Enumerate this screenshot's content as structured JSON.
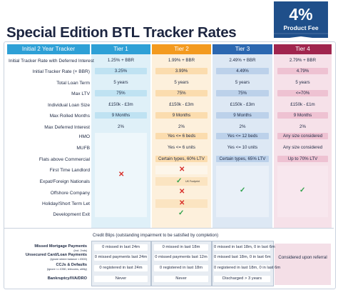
{
  "title": "Special Edition BTL Tracker Rates",
  "badge": {
    "percent": "4%",
    "text": "Product Fee"
  },
  "colors": {
    "navy": "#1f4f8a",
    "tier1": "#2ea0d6",
    "tier2": "#f39a1f",
    "tier3": "#2b67b0",
    "tier4": "#a0254e",
    "cross": "#d8302a",
    "tick": "#31a24c"
  },
  "headers": [
    "Initial 2 Year Tracker",
    "Tier 1",
    "Tier 2",
    "Tier 3",
    "Tier 4"
  ],
  "rows": [
    {
      "label": "Initial Tracker Rate with Deferred Interest",
      "t1": "1.25% + BBR",
      "t2": "1.99% + BBR",
      "t3": "2.49% + BBR",
      "t4": "2.79% + BBR"
    },
    {
      "label": "Initial Tracker Rate (+ BBR)",
      "t1": "3.25%",
      "t2": "3.99%",
      "t3": "4.49%",
      "t4": "4.79%"
    },
    {
      "label": "Total Loan Term",
      "t1": "5 years",
      "t2": "5 years",
      "t3": "5 years",
      "t4": "5 years"
    },
    {
      "label": "Max LTV",
      "t1": "75%",
      "t2": "75%",
      "t3": "75%",
      "t4": "<=70%"
    },
    {
      "label": "Individual Loan Size",
      "t1": "£150k - £3m",
      "t2": "£150k - £3m",
      "t3": "£150k - £3m",
      "t4": "£150k - £1m"
    },
    {
      "label": "Max Rolled Months",
      "t1": "9 Months",
      "t2": "9 Months",
      "t3": "9 Months",
      "t4": "9 Months"
    },
    {
      "label": "Max Deferred Interest",
      "t1": "2%",
      "t2": "2%",
      "t3": "2%",
      "t4": "2%"
    }
  ],
  "criteria": [
    {
      "label": "HMO",
      "t2": "Yes <= 6 beds",
      "t3": "Yes <= 12 beds",
      "t4": "Any size considered"
    },
    {
      "label": "MUFB",
      "t2": "Yes <= 6 units",
      "t3": "Yes <= 10 units",
      "t4": "Any size considered"
    },
    {
      "label": "Flats above Commercial",
      "t2": "Certain types, 60% LTV",
      "t3": "Certain types, 65% LTV",
      "t4": "Up to 70% LTV"
    },
    {
      "label": "First Time Landlord"
    },
    {
      "label": "Expat/Foreign Nationals",
      "t2_note": "UK Footprint"
    },
    {
      "label": "Offshore Company"
    },
    {
      "label": "Holiday/Short Term Let"
    },
    {
      "label": "Development Exit"
    }
  ],
  "credit": {
    "title": "Credit Blips (outstanding impairment to be satisfied by completion)",
    "rows": [
      {
        "label": "Missed Mortgage Payments",
        "note": "(incl. 2nds)",
        "t1": "0 missed in last 24m",
        "t2": "0 missed in last 18m",
        "t3": "0 missed in last 18m, 0 in last 6m"
      },
      {
        "label": "Unsecured Card/Loan Payments",
        "note": "(ignore where balance < £500)",
        "t1": "0 missed payments last 24m",
        "t2": "0 missed payments last 12m",
        "t3": "0 missed last 18m, 0 in last 6m"
      },
      {
        "label": "CCJs & Defaults",
        "note": "(ignore <= £350, telecoms, utility)",
        "t1": "0 registered in last 24m",
        "t2": "0 registered in last 18m",
        "t3": "0 registered in last 18m, 0 in last 6m"
      },
      {
        "label": "Bankruptcy/IVA/DRO",
        "note": "",
        "t1": "Never",
        "t2": "Never",
        "t3": "Discharged > 3 years"
      }
    ],
    "tier4": "Considered upon referral"
  }
}
